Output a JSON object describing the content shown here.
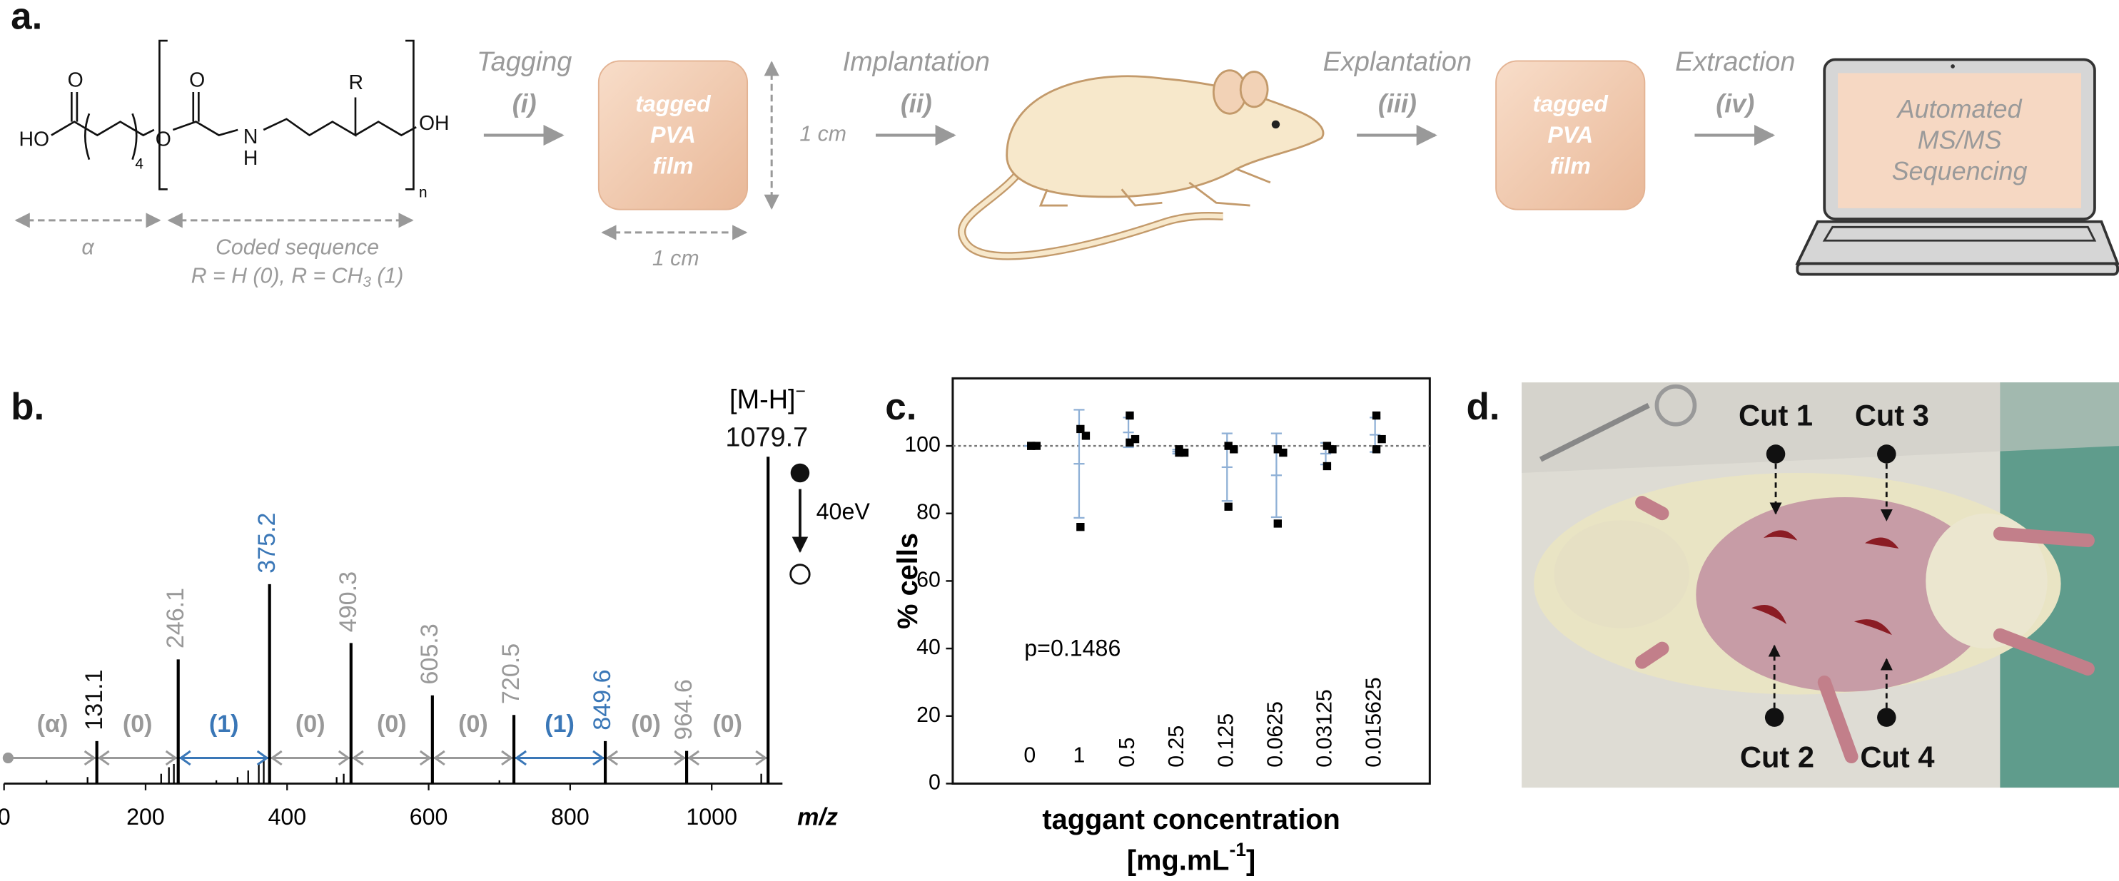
{
  "labels": {
    "a": "a.",
    "b": "b.",
    "c": "c.",
    "d": "d."
  },
  "panel_a": {
    "atoms": [
      "HO",
      "O",
      "O",
      "O",
      "N",
      "H",
      "R",
      "OH"
    ],
    "subscripts": [
      "4",
      "n"
    ],
    "alpha": "α",
    "coded_sequence": "Coded sequence",
    "code_key": {
      "text": "R = H (0), R = CH",
      "sub": "3",
      "end": " (1)"
    },
    "steps": [
      {
        "name": "Tagging",
        "num": "(i)"
      },
      {
        "name": "Implantation",
        "num": "(ii)"
      },
      {
        "name": "Explantation",
        "num": "(iii)"
      },
      {
        "name": "Extraction",
        "num": "(iv)"
      }
    ],
    "films": [
      [
        "tagged",
        "PVA",
        "film"
      ],
      [
        "tagged",
        "PVA",
        "film"
      ]
    ],
    "width_label": "1 cm",
    "height_label": "1 cm",
    "screen": [
      "Automated",
      "MS/MS",
      "Sequencing"
    ]
  },
  "chart_data": [
    {
      "type": "spectrum",
      "x": [
        131.1,
        246.1,
        375.2,
        490.3,
        605.3,
        720.5,
        849.6,
        964.6,
        1079.7
      ],
      "values": [
        13,
        38,
        61,
        43,
        27,
        21,
        13,
        10,
        100
      ],
      "label_colors": [
        "#111111",
        "#999999",
        "#3a77b7",
        "#999999",
        "#999999",
        "#999999",
        "#3a77b7",
        "#999999",
        "#111111"
      ],
      "minor_x": [
        60,
        118,
        222,
        233,
        240,
        300,
        330,
        345,
        360,
        367,
        470,
        480,
        700,
        1070
      ],
      "minor_values": [
        1,
        2,
        3,
        5,
        6,
        1,
        2,
        4,
        6,
        8,
        2,
        3,
        1,
        3
      ],
      "segments": [
        "(α)",
        "(0)",
        "(1)",
        "(0)",
        "(0)",
        "(0)",
        "(1)",
        "(0)",
        "(0)"
      ],
      "segment_colors": [
        "#999999",
        "#999999",
        "#3a77b7",
        "#999999",
        "#999999",
        "#999999",
        "#3a77b7",
        "#999999",
        "#999999"
      ],
      "xlim": [
        0,
        1100
      ],
      "ylim": [
        0,
        100
      ],
      "xticks": [
        0,
        200,
        400,
        600,
        800,
        1000
      ],
      "xlabel": "m/z",
      "precursor": "[M-H]",
      "charge": "−",
      "energy": "40eV",
      "color": "#000000"
    },
    {
      "type": "dot",
      "categories": [
        "0",
        "1",
        "0.5",
        "0.25",
        "0.125",
        "0.0625",
        "0.03125",
        "0.015625"
      ],
      "values": [
        [
          100,
          100,
          100
        ],
        [
          105,
          103,
          76
        ],
        [
          109,
          102,
          101
        ],
        [
          99,
          98,
          98
        ],
        [
          100,
          99,
          82
        ],
        [
          99,
          98,
          77
        ],
        [
          100,
          99,
          94
        ],
        [
          109,
          102,
          99
        ]
      ],
      "means": [
        100,
        94.7,
        104,
        98.3,
        93.7,
        91.3,
        97.7,
        103.3
      ],
      "errors": [
        0,
        16,
        4.4,
        0.6,
        10,
        12.4,
        3.2,
        5.1
      ],
      "ylim": [
        0,
        120
      ],
      "yticks": [
        0,
        20,
        40,
        60,
        80,
        100
      ],
      "reference": 100,
      "ylabel": "% cells",
      "xlabel": "taggant concentration",
      "xunit": {
        "text": "[mg.mL",
        "sup": "-1",
        "end": "]"
      },
      "annotation": "p=0.1486",
      "color": "#000000",
      "error_color": "#8fb0d6"
    }
  ],
  "panel_d": {
    "cuts": [
      "Cut 1",
      "Cut 2",
      "Cut 3",
      "Cut 4"
    ]
  }
}
